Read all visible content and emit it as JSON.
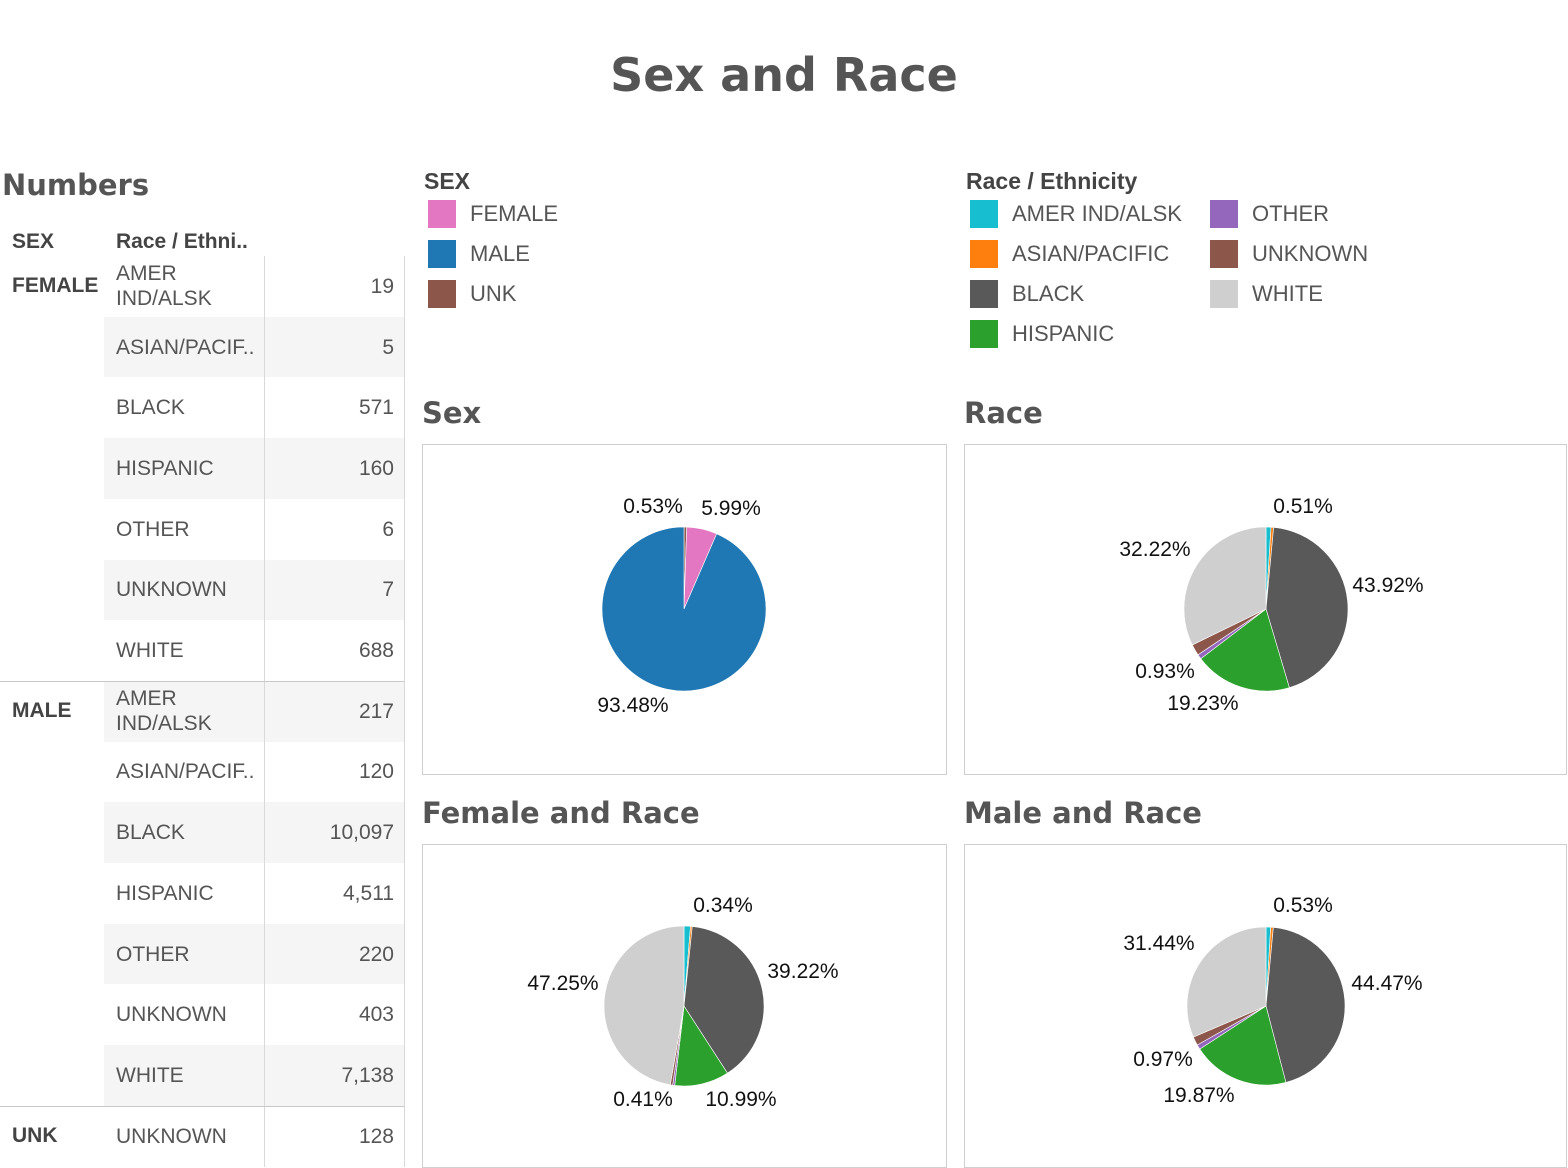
{
  "page_title": "Sex and Race",
  "table": {
    "title": "Numbers",
    "col_sex": "SEX",
    "col_race": "Race / Ethni..",
    "groups": [
      {
        "sex": "FEMALE",
        "rows": [
          {
            "race": "AMER IND/ALSK",
            "value": "19"
          },
          {
            "race": "ASIAN/PACIF..",
            "value": "5"
          },
          {
            "race": "BLACK",
            "value": "571"
          },
          {
            "race": "HISPANIC",
            "value": "160"
          },
          {
            "race": "OTHER",
            "value": "6"
          },
          {
            "race": "UNKNOWN",
            "value": "7"
          },
          {
            "race": "WHITE",
            "value": "688"
          }
        ]
      },
      {
        "sex": "MALE",
        "rows": [
          {
            "race": "AMER IND/ALSK",
            "value": "217"
          },
          {
            "race": "ASIAN/PACIF..",
            "value": "120"
          },
          {
            "race": "BLACK",
            "value": "10,097"
          },
          {
            "race": "HISPANIC",
            "value": "4,511"
          },
          {
            "race": "OTHER",
            "value": "220"
          },
          {
            "race": "UNKNOWN",
            "value": "403"
          },
          {
            "race": "WHITE",
            "value": "7,138"
          }
        ]
      },
      {
        "sex": "UNK",
        "rows": [
          {
            "race": "UNKNOWN",
            "value": "128"
          }
        ]
      }
    ]
  },
  "legends": {
    "sex": {
      "title": "SEX",
      "items": [
        {
          "label": "FEMALE",
          "color": "#e377c2"
        },
        {
          "label": "MALE",
          "color": "#1f77b4"
        },
        {
          "label": "UNK",
          "color": "#8c564b"
        }
      ]
    },
    "race": {
      "title": "Race / Ethnicity",
      "items": [
        {
          "label": "AMER IND/ALSK",
          "color": "#17becf"
        },
        {
          "label": "ASIAN/PACIFIC",
          "color": "#ff7f0e"
        },
        {
          "label": "BLACK",
          "color": "#595959"
        },
        {
          "label": "HISPANIC",
          "color": "#2ca02c"
        },
        {
          "label": "OTHER",
          "color": "#9467bd"
        },
        {
          "label": "UNKNOWN",
          "color": "#8c564b"
        },
        {
          "label": "WHITE",
          "color": "#cfcfcf"
        }
      ]
    }
  },
  "chart_data": [
    {
      "type": "pie",
      "title": "Sex",
      "slices": [
        {
          "label": "FEMALE",
          "value": 1456,
          "color": "#e377c2"
        },
        {
          "label": "MALE",
          "value": 22706,
          "color": "#1f77b4"
        },
        {
          "label": "UNK",
          "value": 128,
          "color": "#8c564b"
        }
      ],
      "data_labels": [
        "0.53%",
        "5.99%",
        "93.48%"
      ]
    },
    {
      "type": "pie",
      "title": "Race",
      "slices": [
        {
          "label": "AMER IND/ALSK",
          "value": 236,
          "color": "#17becf"
        },
        {
          "label": "ASIAN/PACIFIC",
          "value": 125,
          "color": "#ff7f0e"
        },
        {
          "label": "BLACK",
          "value": 10668,
          "color": "#595959"
        },
        {
          "label": "HISPANIC",
          "value": 4671,
          "color": "#2ca02c"
        },
        {
          "label": "OTHER",
          "value": 226,
          "color": "#9467bd"
        },
        {
          "label": "UNKNOWN",
          "value": 538,
          "color": "#8c564b"
        },
        {
          "label": "WHITE",
          "value": 7826,
          "color": "#cfcfcf"
        }
      ],
      "data_labels": [
        "0.51%",
        "43.92%",
        "19.23%",
        "0.93%",
        "32.22%"
      ]
    },
    {
      "type": "pie",
      "title": "Female and Race",
      "slices": [
        {
          "label": "AMER IND/ALSK",
          "value": 19,
          "color": "#17becf"
        },
        {
          "label": "ASIAN/PACIFIC",
          "value": 5,
          "color": "#ff7f0e"
        },
        {
          "label": "BLACK",
          "value": 571,
          "color": "#595959"
        },
        {
          "label": "HISPANIC",
          "value": 160,
          "color": "#2ca02c"
        },
        {
          "label": "OTHER",
          "value": 6,
          "color": "#9467bd"
        },
        {
          "label": "UNKNOWN",
          "value": 7,
          "color": "#8c564b"
        },
        {
          "label": "WHITE",
          "value": 688,
          "color": "#cfcfcf"
        }
      ],
      "data_labels": [
        "0.34%",
        "39.22%",
        "10.99%",
        "0.41%",
        "47.25%"
      ]
    },
    {
      "type": "pie",
      "title": "Male and Race",
      "slices": [
        {
          "label": "AMER IND/ALSK",
          "value": 217,
          "color": "#17becf"
        },
        {
          "label": "ASIAN/PACIFIC",
          "value": 120,
          "color": "#ff7f0e"
        },
        {
          "label": "BLACK",
          "value": 10097,
          "color": "#595959"
        },
        {
          "label": "HISPANIC",
          "value": 4511,
          "color": "#2ca02c"
        },
        {
          "label": "OTHER",
          "value": 220,
          "color": "#9467bd"
        },
        {
          "label": "UNKNOWN",
          "value": 403,
          "color": "#8c564b"
        },
        {
          "label": "WHITE",
          "value": 7138,
          "color": "#cfcfcf"
        }
      ],
      "data_labels": [
        "0.53%",
        "44.47%",
        "19.87%",
        "0.97%",
        "31.44%"
      ]
    }
  ]
}
